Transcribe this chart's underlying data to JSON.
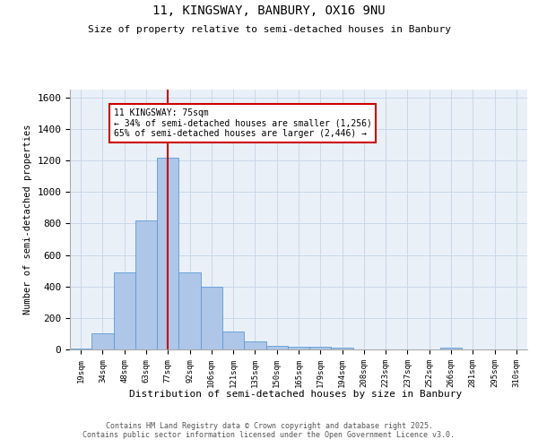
{
  "title1": "11, KINGSWAY, BANBURY, OX16 9NU",
  "title2": "Size of property relative to semi-detached houses in Banbury",
  "xlabel": "Distribution of semi-detached houses by size in Banbury",
  "ylabel": "Number of semi-detached properties",
  "bar_labels": [
    "19sqm",
    "34sqm",
    "48sqm",
    "63sqm",
    "77sqm",
    "92sqm",
    "106sqm",
    "121sqm",
    "135sqm",
    "150sqm",
    "165sqm",
    "179sqm",
    "194sqm",
    "208sqm",
    "223sqm",
    "237sqm",
    "252sqm",
    "266sqm",
    "281sqm",
    "295sqm",
    "310sqm"
  ],
  "bar_values": [
    5,
    105,
    490,
    820,
    1220,
    490,
    400,
    115,
    50,
    25,
    15,
    15,
    10,
    0,
    0,
    0,
    0,
    12,
    0,
    0,
    0
  ],
  "bar_color": "#aec6e8",
  "bar_edge_color": "#5b9bd5",
  "ylim": [
    0,
    1650
  ],
  "yticks": [
    0,
    200,
    400,
    600,
    800,
    1000,
    1200,
    1400,
    1600
  ],
  "property_label": "11 KINGSWAY: 75sqm",
  "pct_smaller": "34% of semi-detached houses are smaller (1,256)",
  "pct_larger": "65% of semi-detached houses are larger (2,446)",
  "vline_x_index": 4,
  "vline_color": "#cc0000",
  "annotation_box_color": "#cc0000",
  "grid_color": "#c8d8e8",
  "bg_color": "#eaf0f8",
  "footer1": "Contains HM Land Registry data © Crown copyright and database right 2025.",
  "footer2": "Contains public sector information licensed under the Open Government Licence v3.0."
}
